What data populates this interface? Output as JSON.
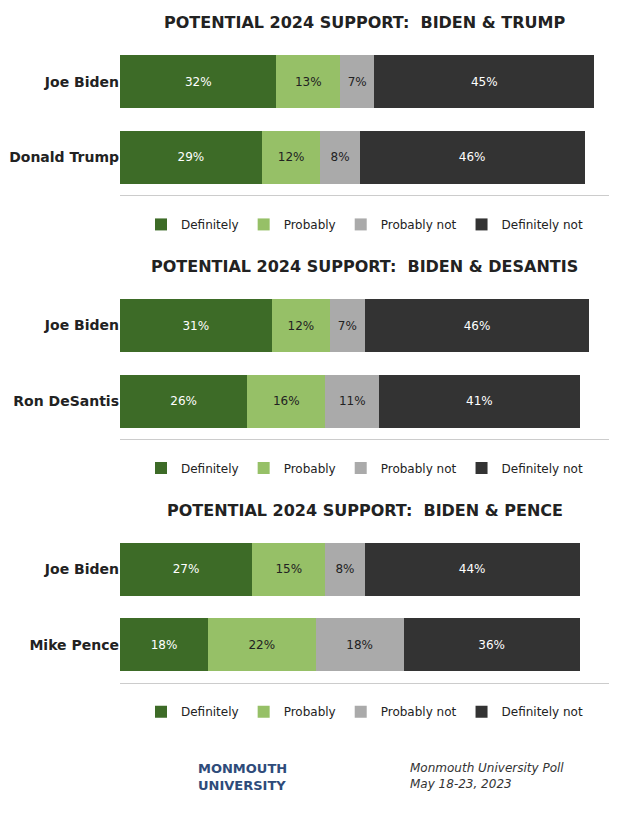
{
  "chart_data": [
    {
      "type": "bar",
      "title": "POTENTIAL 2024 SUPPORT:  BIDEN & TRUMP",
      "orientation": "horizontal",
      "stacked": true,
      "data_labels": true,
      "tick_labels": "y",
      "grid": false,
      "legend": "bottom",
      "categories": [
        "Joe Biden",
        "Donald Trump"
      ],
      "xlim": [
        0,
        100
      ],
      "series": [
        {
          "name": "Definitely",
          "color": "#3d6b27",
          "values": [
            32,
            29
          ],
          "value_labels": [
            "32%",
            "29%"
          ]
        },
        {
          "name": "Probably",
          "color": "#96c067",
          "values": [
            13,
            12
          ],
          "value_labels": [
            "13%",
            "12%"
          ]
        },
        {
          "name": "Probably not",
          "color": "#aaaaaa",
          "values": [
            7,
            8
          ],
          "value_labels": [
            "7%",
            "8%"
          ]
        },
        {
          "name": "Definitely not",
          "color": "#333333",
          "values": [
            45,
            46
          ],
          "value_labels": [
            "45%",
            "46%"
          ]
        }
      ]
    },
    {
      "type": "bar",
      "title": "POTENTIAL 2024 SUPPORT:  BIDEN & DESANTIS",
      "orientation": "horizontal",
      "stacked": true,
      "data_labels": true,
      "tick_labels": "y",
      "grid": false,
      "legend": "bottom",
      "categories": [
        "Joe Biden",
        "Ron DeSantis"
      ],
      "xlim": [
        0,
        100
      ],
      "series": [
        {
          "name": "Definitely",
          "color": "#3d6b27",
          "values": [
            31,
            26
          ],
          "value_labels": [
            "31%",
            "26%"
          ]
        },
        {
          "name": "Probably",
          "color": "#96c067",
          "values": [
            12,
            16
          ],
          "value_labels": [
            "12%",
            "16%"
          ]
        },
        {
          "name": "Probably not",
          "color": "#aaaaaa",
          "values": [
            7,
            11
          ],
          "value_labels": [
            "7%",
            "11%"
          ]
        },
        {
          "name": "Definitely not",
          "color": "#333333",
          "values": [
            46,
            41
          ],
          "value_labels": [
            "46%",
            "41%"
          ]
        }
      ]
    },
    {
      "type": "bar",
      "title": "POTENTIAL 2024 SUPPORT:  BIDEN & PENCE",
      "orientation": "horizontal",
      "stacked": true,
      "data_labels": true,
      "tick_labels": "y",
      "grid": false,
      "legend": "bottom",
      "categories": [
        "Joe Biden",
        "Mike Pence"
      ],
      "xlim": [
        0,
        100
      ],
      "series": [
        {
          "name": "Definitely",
          "color": "#3d6b27",
          "values": [
            27,
            18
          ],
          "value_labels": [
            "27%",
            "18%"
          ]
        },
        {
          "name": "Probably",
          "color": "#96c067",
          "values": [
            15,
            22
          ],
          "value_labels": [
            "15%",
            "22%"
          ]
        },
        {
          "name": "Probably not",
          "color": "#aaaaaa",
          "values": [
            8,
            18
          ],
          "value_labels": [
            "8%",
            "18%"
          ]
        },
        {
          "name": "Definitely not",
          "color": "#333333",
          "values": [
            44,
            36
          ],
          "value_labels": [
            "44%",
            "36%"
          ]
        }
      ],
      "annotations": [
        {
          "text": "MONMOUTH\nUNIVERSITY",
          "color": "#2e4b7a"
        },
        {
          "text": "Monmouth University Poll\nMay 18-23, 2023"
        }
      ]
    }
  ]
}
